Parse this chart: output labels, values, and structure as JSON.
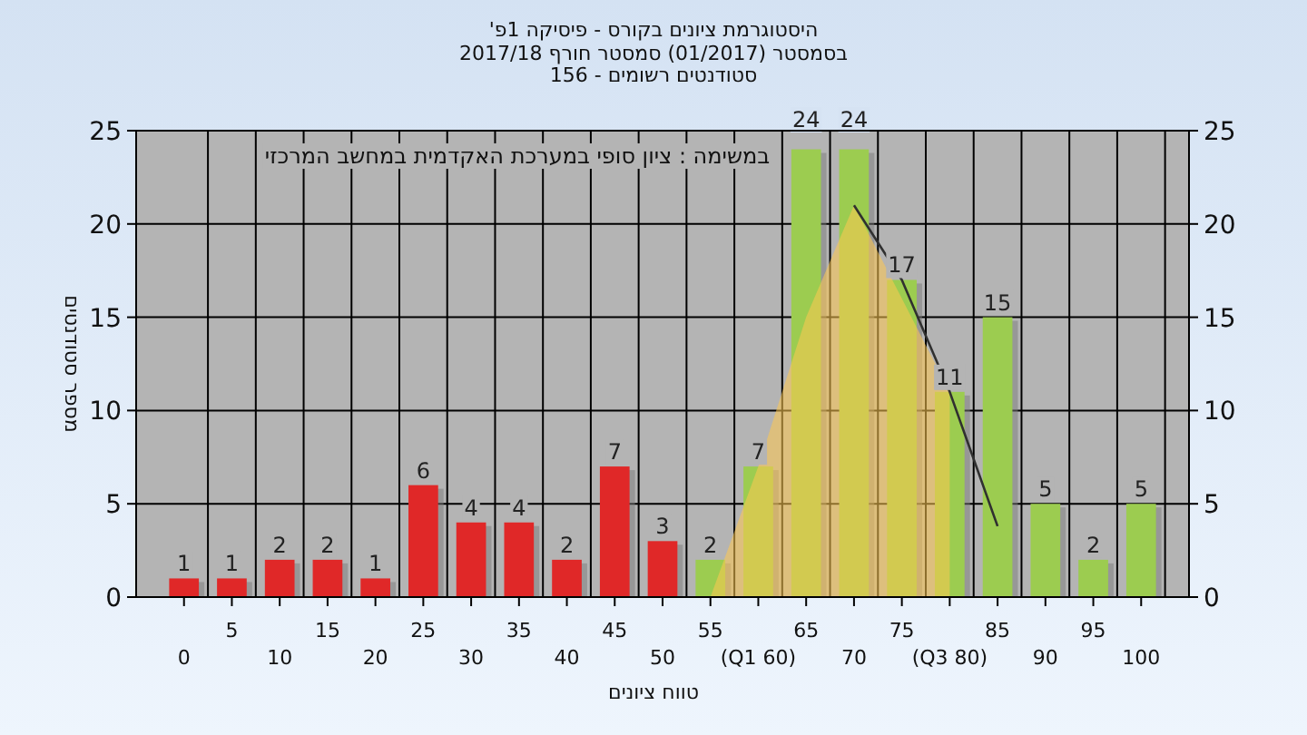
{
  "chart_data": {
    "type": "bar",
    "title": "היסטוגרמת ציונים בקורס - פיסיקה 1פ'",
    "subtitle": "בסמסטר  (01/2017)  סמסטר חורף 2017/18\nסטודנטים רשומים - 156",
    "xlabel": "טווח ציונים",
    "ylabel": "מספר סטודנטים",
    "annotations": [
      "במשימה : ציון סופי במערכת האקדמית במחשב המרכזי"
    ],
    "categories": [
      "0",
      "5",
      "10",
      "15",
      "20",
      "25",
      "30",
      "35",
      "40",
      "45",
      "50",
      "55",
      "(Q1 60)",
      "65",
      "70",
      "75",
      "(Q3 80)",
      "85",
      "90",
      "95",
      "100"
    ],
    "series": [
      {
        "type": "area",
        "color": "#ffc850",
        "values": [
          null,
          null,
          null,
          null,
          null,
          null,
          null,
          null,
          null,
          null,
          null,
          0,
          7,
          15,
          21,
          16,
          11,
          null,
          null,
          null,
          null
        ]
      },
      {
        "type": "line",
        "color": "#303030",
        "values": [
          null,
          null,
          null,
          null,
          null,
          null,
          null,
          null,
          null,
          null,
          null,
          null,
          null,
          null,
          21,
          17,
          11,
          3.8,
          null,
          null,
          null
        ]
      },
      {
        "colors": [
          "#e02828",
          "#e02828",
          "#e02828",
          "#e02828",
          "#e02828",
          "#e02828",
          "#e02828",
          "#e02828",
          "#e02828",
          "#e02828",
          "#e02828",
          "#9ccc50",
          "#9ccc50",
          "#9ccc50",
          "#9ccc50",
          "#9ccc50",
          "#9ccc50",
          "#9ccc50",
          "#9ccc50",
          "#9ccc50",
          "#9ccc50"
        ],
        "values": [
          1,
          1,
          2,
          2,
          1,
          6,
          4,
          4,
          2,
          7,
          3,
          2,
          7,
          24,
          24,
          17,
          11,
          15,
          5,
          2,
          5
        ],
        "value_labels": [
          "1",
          "1",
          "2",
          "2",
          "1",
          "6",
          "4",
          "4",
          "2",
          "7",
          "3",
          "2",
          "7",
          "24",
          "24",
          "17",
          "11",
          "15",
          "5",
          "2",
          "5"
        ]
      }
    ],
    "ylim": [
      0,
      25
    ],
    "yticks": [
      0,
      5,
      10,
      15,
      20,
      25
    ],
    "y2lim": [
      0,
      25
    ],
    "y2ticks": [
      0,
      5,
      10,
      15,
      20,
      25
    ],
    "grid": true
  }
}
